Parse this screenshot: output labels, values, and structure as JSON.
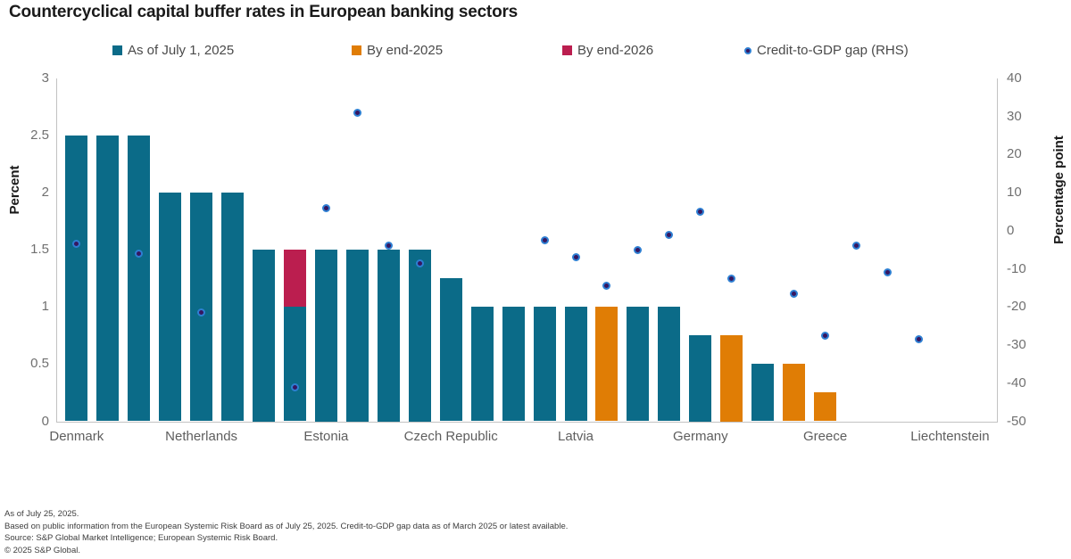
{
  "title": "Countercyclical capital buffer rates in European banking sectors",
  "colors": {
    "teal": "#0B6B88",
    "orange": "#E07D05",
    "crimson": "#BB1E4F",
    "dot_center": "#371760",
    "dot_ring": "#2E7FD2",
    "axis_line": "#C2C2C2",
    "tick_text": "#707070",
    "category_text": "#5E5E5E"
  },
  "footnotes": {
    "line1": "As of July 25, 2025.",
    "line2": "Based on public information from the European Systemic Risk Board as of July 25, 2025. Credit-to-GDP gap data as of March 2025 or latest available.",
    "line3": "Source: S&P Global Market Intelligence; European Systemic Risk Board.",
    "line4": "© 2025 S&P Global."
  },
  "chart_data": {
    "type": "bar",
    "title": "Countercyclical capital buffer rates in European banking sectors",
    "legend_position": "top",
    "grid": false,
    "series_legend": [
      {
        "name": "As of July 1, 2025",
        "color": "#0B6B88",
        "marker": "square"
      },
      {
        "name": "By end-2025",
        "color": "#E07D05",
        "marker": "square"
      },
      {
        "name": "By end-2026",
        "color": "#BB1E4F",
        "marker": "square"
      },
      {
        "name": "Credit-to-GDP gap (RHS)",
        "color": "#2E7FD2",
        "marker": "dot"
      }
    ],
    "left_axis": {
      "title": "Percent",
      "min": 0,
      "max": 3,
      "ticks": [
        3,
        2.5,
        2,
        1.5,
        1,
        0.5,
        0
      ]
    },
    "right_axis": {
      "title": "Percentage point",
      "min": -50,
      "max": 40,
      "ticks": [
        40,
        30,
        20,
        10,
        0,
        -10,
        -20,
        -30,
        -40,
        -50
      ]
    },
    "points": [
      {
        "label": "Denmark",
        "as_of_jul_2025": 2.5,
        "by_end_2025": 0,
        "by_end_2026": 0,
        "credit_gap_rhs": -3.5
      },
      {
        "label": "",
        "as_of_jul_2025": 2.5,
        "by_end_2025": 0,
        "by_end_2026": 0,
        "credit_gap_rhs": null
      },
      {
        "label": "",
        "as_of_jul_2025": 2.5,
        "by_end_2025": 0,
        "by_end_2026": 0,
        "credit_gap_rhs": -6
      },
      {
        "label": "",
        "as_of_jul_2025": 2.0,
        "by_end_2025": 0,
        "by_end_2026": 0,
        "credit_gap_rhs": null
      },
      {
        "label": "Netherlands",
        "as_of_jul_2025": 2.0,
        "by_end_2025": 0,
        "by_end_2026": 0,
        "credit_gap_rhs": -21.5
      },
      {
        "label": "",
        "as_of_jul_2025": 2.0,
        "by_end_2025": 0,
        "by_end_2026": 0,
        "credit_gap_rhs": null
      },
      {
        "label": "",
        "as_of_jul_2025": 1.5,
        "by_end_2025": 0,
        "by_end_2026": 0,
        "credit_gap_rhs": null
      },
      {
        "label": "",
        "as_of_jul_2025": 1.0,
        "by_end_2025": 0,
        "by_end_2026": 0.5,
        "credit_gap_rhs": -41
      },
      {
        "label": "Estonia",
        "as_of_jul_2025": 1.5,
        "by_end_2025": 0,
        "by_end_2026": 0,
        "credit_gap_rhs": 6
      },
      {
        "label": "",
        "as_of_jul_2025": 1.5,
        "by_end_2025": 0,
        "by_end_2026": 0,
        "credit_gap_rhs": 31
      },
      {
        "label": "",
        "as_of_jul_2025": 1.5,
        "by_end_2025": 0,
        "by_end_2026": 0,
        "credit_gap_rhs": -4
      },
      {
        "label": "",
        "as_of_jul_2025": 1.5,
        "by_end_2025": 0,
        "by_end_2026": 0,
        "credit_gap_rhs": -8.5
      },
      {
        "label": "Czech Republic",
        "as_of_jul_2025": 1.25,
        "by_end_2025": 0,
        "by_end_2026": 0,
        "credit_gap_rhs": null
      },
      {
        "label": "",
        "as_of_jul_2025": 1.0,
        "by_end_2025": 0,
        "by_end_2026": 0,
        "credit_gap_rhs": null
      },
      {
        "label": "",
        "as_of_jul_2025": 1.0,
        "by_end_2025": 0,
        "by_end_2026": 0,
        "credit_gap_rhs": null
      },
      {
        "label": "",
        "as_of_jul_2025": 1.0,
        "by_end_2025": 0,
        "by_end_2026": 0,
        "credit_gap_rhs": -2.5
      },
      {
        "label": "Latvia",
        "as_of_jul_2025": 1.0,
        "by_end_2025": 0,
        "by_end_2026": 0,
        "credit_gap_rhs": -7
      },
      {
        "label": "",
        "as_of_jul_2025": 0,
        "by_end_2025": 1.0,
        "by_end_2026": 0,
        "credit_gap_rhs": -14.5
      },
      {
        "label": "",
        "as_of_jul_2025": 1.0,
        "by_end_2025": 0,
        "by_end_2026": 0,
        "credit_gap_rhs": -5
      },
      {
        "label": "",
        "as_of_jul_2025": 1.0,
        "by_end_2025": 0,
        "by_end_2026": 0,
        "credit_gap_rhs": -1
      },
      {
        "label": "Germany",
        "as_of_jul_2025": 0.75,
        "by_end_2025": 0,
        "by_end_2026": 0,
        "credit_gap_rhs": 5
      },
      {
        "label": "",
        "as_of_jul_2025": 0,
        "by_end_2025": 0.75,
        "by_end_2026": 0,
        "credit_gap_rhs": -12.5
      },
      {
        "label": "",
        "as_of_jul_2025": 0.5,
        "by_end_2025": 0,
        "by_end_2026": 0,
        "credit_gap_rhs": null
      },
      {
        "label": "",
        "as_of_jul_2025": 0,
        "by_end_2025": 0.5,
        "by_end_2026": 0,
        "credit_gap_rhs": -16.5
      },
      {
        "label": "Greece",
        "as_of_jul_2025": 0,
        "by_end_2025": 0.25,
        "by_end_2026": 0,
        "credit_gap_rhs": -27.5
      },
      {
        "label": "",
        "as_of_jul_2025": 0,
        "by_end_2025": 0,
        "by_end_2026": 0,
        "credit_gap_rhs": -4
      },
      {
        "label": "",
        "as_of_jul_2025": 0,
        "by_end_2025": 0,
        "by_end_2026": 0,
        "credit_gap_rhs": -11
      },
      {
        "label": "",
        "as_of_jul_2025": 0,
        "by_end_2025": 0,
        "by_end_2026": 0,
        "credit_gap_rhs": -28.5
      },
      {
        "label": "Liechtenstein",
        "as_of_jul_2025": 0,
        "by_end_2025": 0,
        "by_end_2026": 0,
        "credit_gap_rhs": null
      }
    ]
  }
}
